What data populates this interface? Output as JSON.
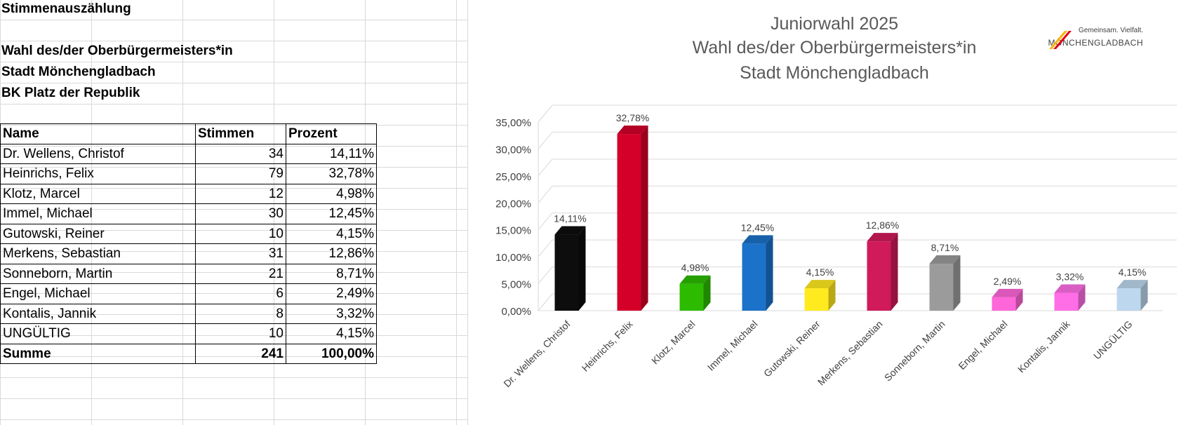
{
  "sheet": {
    "heading": "Stimmenauszählung",
    "lines": [
      "Wahl des/der Oberbürgermeisters*in",
      "Stadt Mönchengladbach",
      "BK Platz der Republik"
    ],
    "columns": [
      "Name",
      "Stimmen",
      "Prozent"
    ],
    "rows": [
      {
        "name": "Dr. Wellens, Christof",
        "votes": "34",
        "pct": "14,11%"
      },
      {
        "name": "Heinrichs, Felix",
        "votes": "79",
        "pct": "32,78%"
      },
      {
        "name": "Klotz, Marcel",
        "votes": "12",
        "pct": "4,98%"
      },
      {
        "name": "Immel, Michael",
        "votes": "30",
        "pct": "12,45%"
      },
      {
        "name": "Gutowski, Reiner",
        "votes": "10",
        "pct": "4,15%"
      },
      {
        "name": "Merkens, Sebastian",
        "votes": "31",
        "pct": "12,86%"
      },
      {
        "name": "Sonneborn, Martin",
        "votes": "21",
        "pct": "8,71%"
      },
      {
        "name": "Engel, Michael",
        "votes": "6",
        "pct": "2,49%"
      },
      {
        "name": "Kontalis, Jannik",
        "votes": "8",
        "pct": "3,32%"
      },
      {
        "name": "UNGÜLTIG",
        "votes": "10",
        "pct": "4,15%"
      }
    ],
    "total": {
      "name": "Summe",
      "votes": "241",
      "pct": "100,00%"
    }
  },
  "logo": {
    "tagline": "Gemeinsam. Vielfalt.",
    "city": "MÖNCHENGLADBACH",
    "colors": [
      "#f7b500",
      "#e2001a"
    ]
  },
  "chart_data": {
    "type": "bar",
    "title_lines": [
      "Juniorwahl 2025",
      "Wahl des/der Oberbürgermeisters*in",
      "Stadt Mönchengladbach"
    ],
    "categories": [
      "Dr. Wellens, Christof",
      "Heinrichs, Felix",
      "Klotz, Marcel",
      "Immel, Michael",
      "Gutowski, Reiner",
      "Merkens, Sebastian",
      "Sonneborn, Martin",
      "Engel, Michael",
      "Kontalis, Jannik",
      "UNGÜLTIG"
    ],
    "values": [
      14.11,
      32.78,
      4.98,
      12.45,
      4.15,
      12.86,
      8.71,
      2.49,
      3.32,
      4.15
    ],
    "data_labels": [
      "14,11%",
      "32,78%",
      "4,98%",
      "12,45%",
      "4,15%",
      "12,86%",
      "8,71%",
      "2,49%",
      "3,32%",
      "4,15%"
    ],
    "colors": [
      "#0d0d0d",
      "#d4002a",
      "#2dbb00",
      "#1b72c9",
      "#ffea1f",
      "#d01a5a",
      "#9b9b9b",
      "#ff66d9",
      "#ff6ee6",
      "#bdd7ee"
    ],
    "ylim": [
      0,
      35
    ],
    "yticks": [
      "0,00%",
      "5,00%",
      "10,00%",
      "15,00%",
      "20,00%",
      "25,00%",
      "30,00%",
      "35,00%"
    ],
    "ytick_values": [
      0,
      5,
      10,
      15,
      20,
      25,
      30,
      35
    ],
    "grid": true,
    "style": "3d-column"
  }
}
